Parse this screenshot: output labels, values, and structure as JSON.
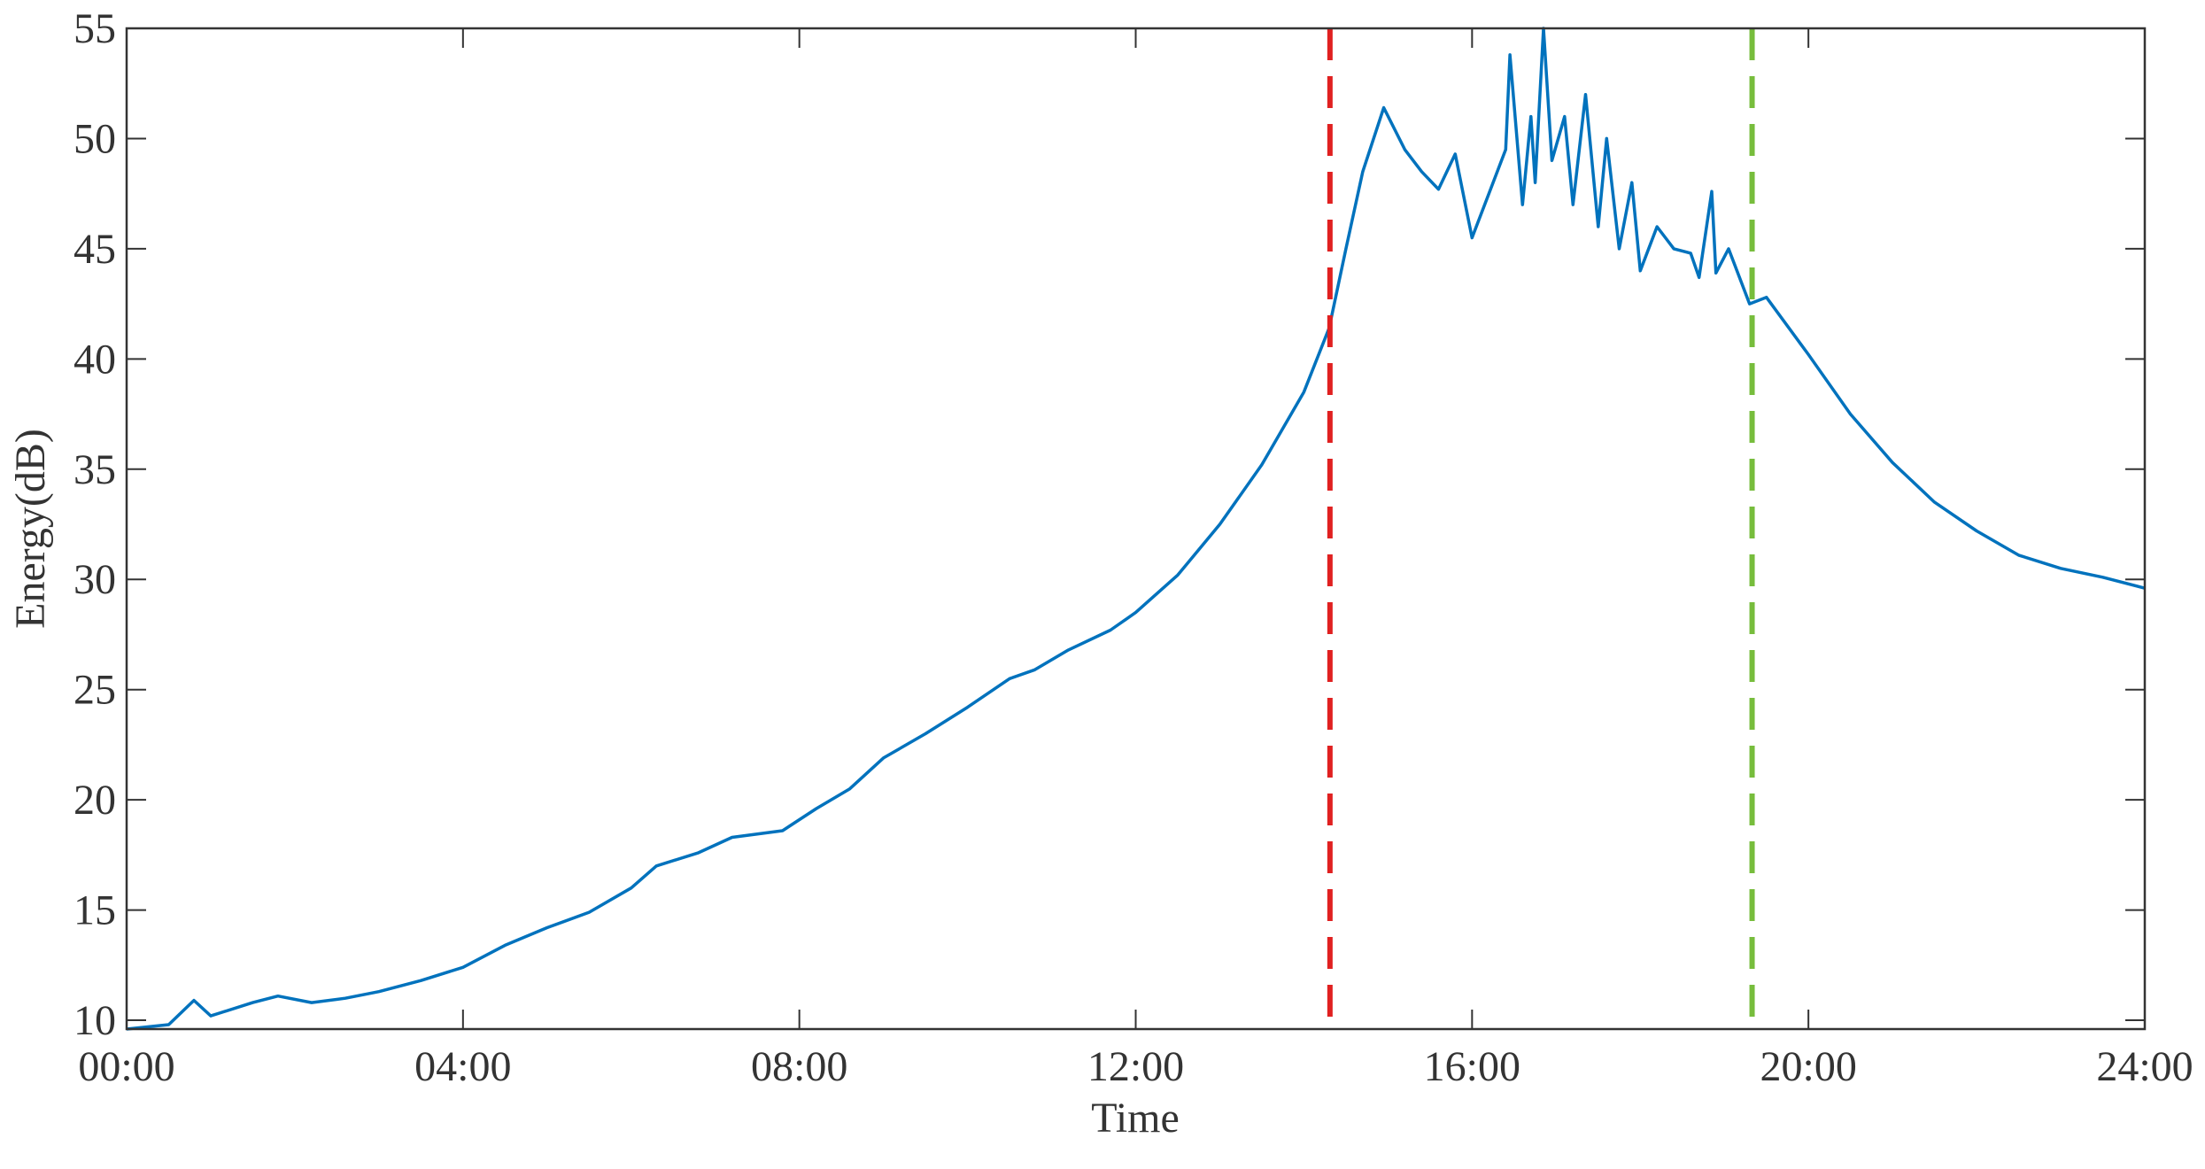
{
  "chart_data": {
    "type": "line",
    "x_label": "Time",
    "y_label": "Energy(dB)",
    "x": [
      0,
      0.5,
      0.8,
      1.0,
      1.5,
      1.8,
      2.2,
      2.6,
      3,
      3.5,
      4,
      4.5,
      5,
      5.5,
      6,
      6.3,
      6.8,
      7.2,
      7.8,
      8.2,
      8.6,
      9,
      9.5,
      10,
      10.5,
      10.8,
      11.2,
      11.7,
      12,
      12.5,
      13,
      13.5,
      14,
      14.3,
      14.5,
      14.7,
      14.95,
      15.2,
      15.4,
      15.6,
      15.8,
      16,
      16.2,
      16.4,
      16.45,
      16.6,
      16.7,
      16.75,
      16.85,
      16.95,
      17.1,
      17.2,
      17.35,
      17.5,
      17.6,
      17.75,
      17.9,
      18.0,
      18.2,
      18.4,
      18.6,
      18.7,
      18.85,
      18.9,
      19.05,
      19.3,
      19.5,
      20,
      20.5,
      21,
      21.5,
      22,
      22.5,
      23,
      23.5,
      24
    ],
    "series": [
      {
        "color": "#0072bd",
        "values": [
          9.6,
          9.8,
          10.9,
          10.2,
          10.8,
          11.1,
          10.8,
          11.0,
          11.3,
          11.8,
          12.4,
          13.4,
          14.2,
          14.9,
          16.0,
          17.0,
          17.6,
          18.3,
          18.6,
          19.6,
          20.5,
          21.9,
          23.0,
          24.2,
          25.5,
          25.9,
          26.8,
          27.7,
          28.5,
          30.2,
          32.5,
          35.2,
          38.5,
          41.4,
          45,
          48.5,
          51.4,
          49.5,
          48.5,
          47.7,
          49.3,
          45.5,
          47.5,
          49.5,
          53.8,
          47,
          51,
          48,
          55,
          49,
          51,
          47,
          52,
          46,
          50,
          45,
          48,
          44,
          46,
          45,
          44.8,
          43.7,
          47.6,
          43.9,
          45.0,
          42.5,
          42.8,
          40.2,
          37.5,
          35.3,
          33.5,
          32.2,
          31.1,
          30.5,
          30.1,
          29.6
        ]
      }
    ],
    "vlines": [
      {
        "x": 14.31,
        "color": "#e02020"
      },
      {
        "x": 19.33,
        "color": "#77bd3c"
      }
    ],
    "xlim": [
      0,
      24
    ],
    "xticks": [
      {
        "value": 0,
        "label": "00:00"
      },
      {
        "value": 4,
        "label": "04:00"
      },
      {
        "value": 8,
        "label": "08:00"
      },
      {
        "value": 12,
        "label": "12:00"
      },
      {
        "value": 16,
        "label": "16:00"
      },
      {
        "value": 20,
        "label": "20:00"
      },
      {
        "value": 24,
        "label": "24:00"
      }
    ],
    "ylim": [
      9.6,
      55
    ],
    "yticks": [
      10,
      15,
      20,
      25,
      30,
      35,
      40,
      45,
      50,
      55
    ],
    "grid": false
  }
}
